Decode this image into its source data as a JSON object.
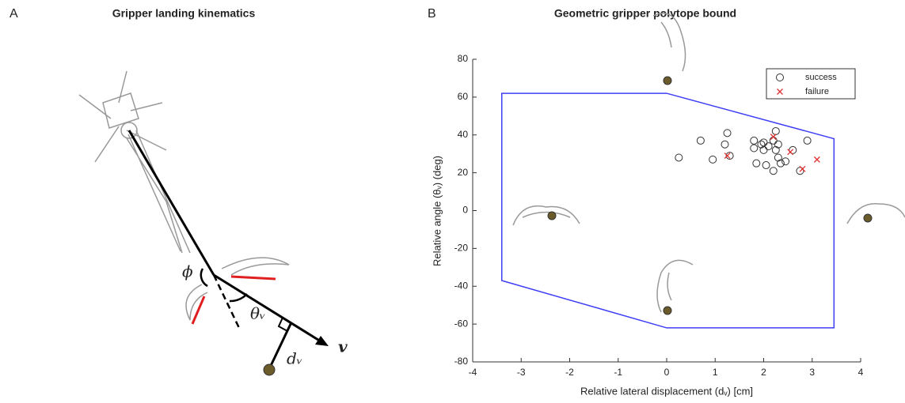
{
  "panel_a": {
    "letter": "A",
    "title": "Gripper landing kinematics",
    "labels": {
      "phi": "ϕ",
      "theta": "θᵥ",
      "d": "dᵥ",
      "v": "v"
    }
  },
  "chart_data": {
    "type": "scatter",
    "letter": "B",
    "title": "Geometric gripper polytope bound",
    "x_label": "Relative lateral displacement (dᵥ) [cm]",
    "y_label": "Relative angle (θᵥ) (deg)",
    "xlim": [
      -4,
      4
    ],
    "xticks": [
      -4,
      -3,
      -2,
      -1,
      0,
      1,
      2,
      3,
      4
    ],
    "ylim": [
      -80,
      80
    ],
    "yticks": [
      -80,
      -60,
      -40,
      -20,
      0,
      20,
      40,
      60,
      80
    ],
    "boundary": {
      "color": "#3f3ff5",
      "x": [
        -3.4,
        0,
        3.45,
        3.45,
        0,
        -3.4
      ],
      "y": [
        62,
        62,
        38,
        -62,
        -62,
        -37
      ]
    },
    "series": [
      {
        "name": "success",
        "color": "#333333",
        "marker": "circle",
        "x": [
          0.25,
          0.7,
          0.95,
          1.2,
          1.25,
          1.3,
          1.8,
          1.8,
          1.85,
          1.95,
          2.0,
          2.0,
          2.05,
          2.1,
          2.2,
          2.2,
          2.25,
          2.25,
          2.3,
          2.3,
          2.35,
          2.45,
          2.6,
          2.75,
          2.9
        ],
        "values": [
          28,
          37,
          27,
          35,
          41,
          29,
          37,
          33,
          25,
          35,
          32,
          36,
          24,
          34,
          21,
          37,
          42,
          32,
          35,
          28,
          25,
          26,
          32,
          21,
          37
        ]
      },
      {
        "name": "failure",
        "color": "#e03030",
        "marker": "cross",
        "x": [
          1.25,
          2.2,
          2.55,
          2.8,
          3.1
        ],
        "values": [
          29,
          39,
          31,
          22,
          27
        ]
      }
    ]
  }
}
